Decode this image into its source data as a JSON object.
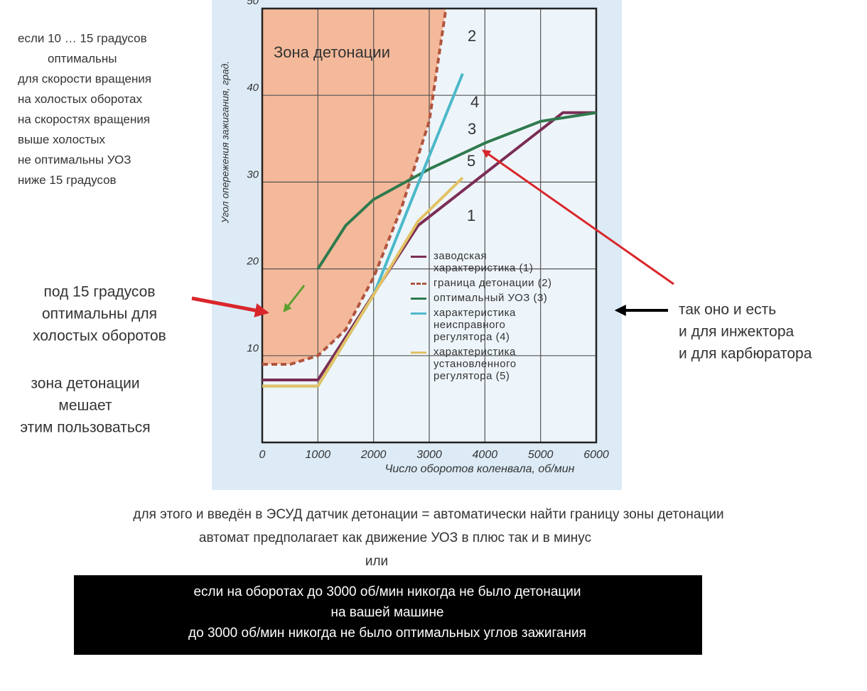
{
  "chart_data": {
    "type": "line",
    "zone_label": "Зона детонации",
    "zone_color": "#f4b99a",
    "x_label": "Число оборотов коленвала, об/мин",
    "y_label": "Угол опережения зажигания, град.",
    "xlim": [
      0,
      6000
    ],
    "xticks": [
      0,
      1000,
      2000,
      3000,
      4000,
      5000,
      6000
    ],
    "ylim": [
      0,
      50
    ],
    "yticks": [
      10,
      20,
      30,
      40,
      50
    ],
    "grid": true,
    "series": [
      {
        "name": "заводская характеристика (1)",
        "label": "1",
        "color": "#7b2d55",
        "dash": false,
        "x": [
          0,
          1000,
          2800,
          5400,
          6000
        ],
        "values": [
          7.2,
          7.2,
          25,
          38,
          38
        ]
      },
      {
        "name": "граница детонации (2)",
        "label": "2",
        "color": "#b0553f",
        "dash": true,
        "x": [
          0,
          500,
          1000,
          1500,
          2000,
          2500,
          3000,
          3300
        ],
        "values": [
          9,
          9,
          10,
          13,
          19,
          27,
          37,
          50
        ]
      },
      {
        "name": "оптимальный УОЗ (3)",
        "label": "3",
        "color": "#2f7a4e",
        "dash": false,
        "x": [
          1000,
          1500,
          2000,
          3000,
          4000,
          5000,
          6000
        ],
        "values": [
          20,
          25,
          28,
          31.5,
          34.5,
          37,
          38
        ]
      },
      {
        "name": "характеристика неисправного регулятора (4)",
        "label": "4",
        "color": "#4cb9c9",
        "dash": false,
        "x": [
          0,
          1000,
          2000,
          3000,
          3600
        ],
        "values": [
          6.5,
          6.5,
          17,
          33,
          42.5
        ]
      },
      {
        "name": "характеристика установленного регулятора (5)",
        "label": "5",
        "color": "#e2c265",
        "dash": false,
        "x": [
          0,
          1000,
          2000,
          2800,
          3600
        ],
        "values": [
          6.5,
          6.5,
          17,
          25.5,
          30.5
        ]
      }
    ]
  },
  "notes": {
    "top_left": [
      "если 10 … 15 градусов",
      "оптимальны",
      "для скорости вращения",
      "на холостых оборотах",
      "на скоростях вращения",
      "выше холостых",
      "не оптимальны УОЗ",
      "ниже 15 градусов"
    ],
    "mid_left": [
      "под 15 градусов",
      "оптимальны для",
      "холостых оборотов"
    ],
    "low_left": [
      "зона детонации",
      "мешает",
      "этим пользоваться"
    ],
    "right": [
      "так оно и есть",
      "и для инжектора",
      "и для карбюратора"
    ],
    "bottom": [
      "для этого и введён в ЭСУД датчик детонации = автоматически найти границу зоны детонации",
      "автомат предполагает как движение УОЗ в плюс так и в минус",
      "или"
    ],
    "box": [
      "если  на оборотах до 3000 об/мин никогда не было детонации",
      "на вашей машине",
      "до 3000 об/мин  никогда не было оптимальных углов зажигания"
    ]
  }
}
